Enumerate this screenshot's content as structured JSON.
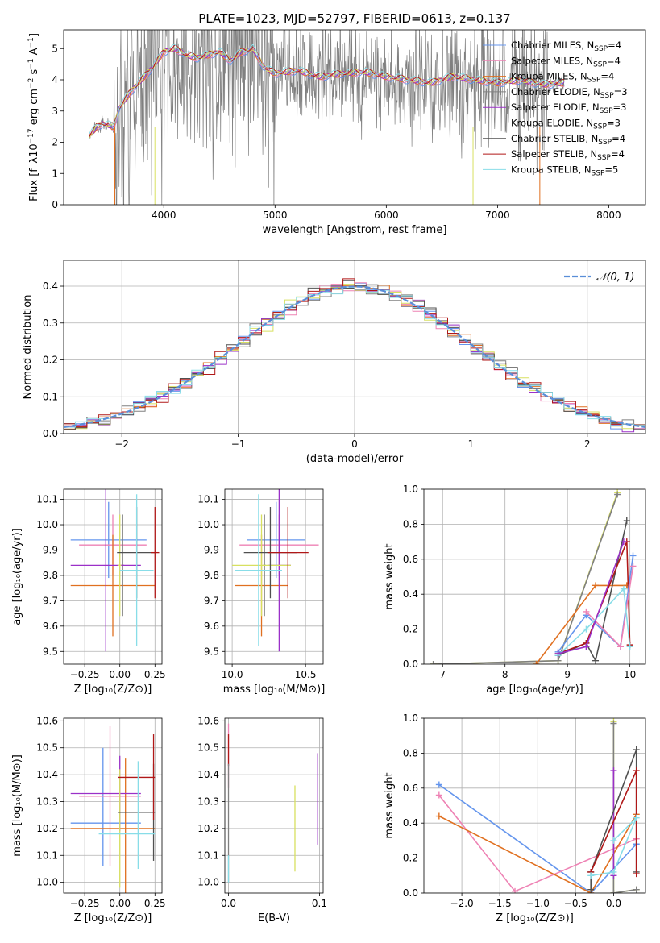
{
  "title": "PLATE=1023, MJD=52797, FIBERID=0613, z=0.137",
  "colors": {
    "Chabrier MILES": "#6495ed",
    "Salpeter MILES": "#ee82b4",
    "Kroupa MILES": "#e07020",
    "Chabrier ELODIE": "#808080",
    "Salpeter ELODIE": "#9b30c8",
    "Kroupa ELODIE": "#d8e060",
    "Chabrier STELIB": "#505050",
    "Salpeter STELIB": "#b01818",
    "Kroupa STELIB": "#88dde8",
    "gaussian": "#5a8ed8"
  },
  "chart_data": [
    {
      "id": "spectrum",
      "type": "line",
      "xlabel": "wavelength [Angstrom, rest frame]",
      "ylabel": "Flux [f_λ10^-17 erg cm^-2 s^-1 A^-1]",
      "xlim": [
        3100,
        8330
      ],
      "ylim": [
        0,
        5.6
      ],
      "xticks": [
        "4000",
        "5000",
        "6000",
        "7000",
        "8000"
      ],
      "yticks": [
        "0",
        "1",
        "2",
        "3",
        "4",
        "5"
      ],
      "legend_position": "right",
      "legend": [
        "Chabrier MILES, N_SSP=4",
        "Salpeter MILES, N_SSP=4",
        "Kroupa MILES, N_SSP=4",
        "Chabrier ELODIE, N_SSP=3",
        "Salpeter ELODIE, N_SSP=3",
        "Kroupa ELODIE, N_SSP=3",
        "Chabrier STELIB, N_SSP=4",
        "Salpeter STELIB, N_SSP=4",
        "Kroupa STELIB, N_SSP=5"
      ],
      "continuum": {
        "x": [
          3330,
          3400,
          3450,
          3550,
          3600,
          3700,
          3800,
          3900,
          4000,
          4100,
          4200,
          4300,
          4400,
          4500,
          4600,
          4700,
          4800,
          4900,
          5000,
          5200,
          5400,
          5600,
          5800,
          6000,
          6200,
          6400,
          6600,
          6800,
          7000,
          7200,
          7400,
          7600
        ],
        "y": [
          2.2,
          2.5,
          2.6,
          2.5,
          3.1,
          3.6,
          4.0,
          4.4,
          4.9,
          5.0,
          4.8,
          4.7,
          4.8,
          4.9,
          4.6,
          4.9,
          5.0,
          4.4,
          4.2,
          4.3,
          4.1,
          4.2,
          4.25,
          4.1,
          4.0,
          3.9,
          4.1,
          4.0,
          3.9,
          4.0,
          3.85,
          3.9
        ]
      }
    },
    {
      "id": "residuals",
      "type": "histogram",
      "xlabel": "(data-model)/error",
      "ylabel": "Normed distribution",
      "xlim": [
        -2.5,
        2.5
      ],
      "ylim": [
        0,
        0.47
      ],
      "xticks": [
        "−2",
        "−1",
        "0",
        "1",
        "2"
      ],
      "yticks": [
        "0.0",
        "0.1",
        "0.2",
        "0.3",
        "0.4"
      ],
      "legend_position": "top-right",
      "legend": [
        "𝒩(0, 1)"
      ],
      "bin_width": 0.1
    },
    {
      "id": "age-vs-Z",
      "type": "scatter",
      "xlabel": "Z [log10(Z/Z⊙)]",
      "ylabel": "age [log10(age/yr)]",
      "xlim": [
        -0.4,
        0.3
      ],
      "ylim": [
        9.45,
        10.14
      ],
      "xticks": [
        "−0.25",
        "0.00",
        "0.25"
      ],
      "yticks": [
        "9.5",
        "9.6",
        "9.7",
        "9.8",
        "9.9",
        "10.0",
        "10.1"
      ],
      "errorbars": [
        {
          "series": "Chabrier MILES",
          "x": -0.08,
          "xerr": 0.27,
          "y": 9.94,
          "yerr": 0.15
        },
        {
          "series": "Salpeter MILES",
          "x": -0.05,
          "xerr": 0.24,
          "y": 9.92,
          "yerr": 0.12
        },
        {
          "series": "Kroupa MILES",
          "x": -0.05,
          "xerr": 0.3,
          "y": 9.76,
          "yerr": 0.2
        },
        {
          "series": "Chabrier ELODIE",
          "x": 0.02,
          "xerr": 0.01,
          "y": 9.84,
          "yerr": 0.2
        },
        {
          "series": "Salpeter ELODIE",
          "x": -0.1,
          "xerr": 0.25,
          "y": 9.84,
          "yerr": 0.34
        },
        {
          "series": "Kroupa ELODIE",
          "x": 0.0,
          "xerr": 0.01,
          "y": 9.84,
          "yerr": 0.2
        },
        {
          "series": "Chabrier STELIB",
          "x": 0.12,
          "xerr": 0.14,
          "y": 9.89,
          "yerr": 0.18
        },
        {
          "series": "Salpeter STELIB",
          "x": 0.25,
          "xerr": 0.03,
          "y": 9.89,
          "yerr": 0.18
        },
        {
          "series": "Kroupa STELIB",
          "x": 0.12,
          "xerr": 0.12,
          "y": 9.82,
          "yerr": 0.3
        }
      ]
    },
    {
      "id": "age-vs-mass",
      "type": "scatter",
      "xlabel": "mass [log10(M/M⊙)]",
      "ylabel": "",
      "xlim": [
        9.95,
        10.62
      ],
      "ylim": [
        9.45,
        10.14
      ],
      "xticks": [
        "10.0",
        "10.5"
      ],
      "yticks": [
        "9.5",
        "9.6",
        "9.7",
        "9.8",
        "9.9",
        "10.0",
        "10.1"
      ],
      "errorbars": [
        {
          "series": "Chabrier MILES",
          "x": 10.3,
          "xerr": 0.2,
          "y": 9.94,
          "yerr": 0.15
        },
        {
          "series": "Salpeter MILES",
          "x": 10.32,
          "xerr": 0.27,
          "y": 9.92,
          "yerr": 0.12
        },
        {
          "series": "Kroupa MILES",
          "x": 10.2,
          "xerr": 0.18,
          "y": 9.76,
          "yerr": 0.2
        },
        {
          "series": "Chabrier ELODIE",
          "x": 10.22,
          "xerr": 0.01,
          "y": 9.84,
          "yerr": 0.2
        },
        {
          "series": "Salpeter ELODIE",
          "x": 10.32,
          "xerr": 0.08,
          "y": 9.84,
          "yerr": 0.34
        },
        {
          "series": "Kroupa ELODIE",
          "x": 10.2,
          "xerr": 0.2,
          "y": 9.84,
          "yerr": 0.2
        },
        {
          "series": "Chabrier STELIB",
          "x": 10.26,
          "xerr": 0.18,
          "y": 9.89,
          "yerr": 0.18
        },
        {
          "series": "Salpeter STELIB",
          "x": 10.38,
          "xerr": 0.14,
          "y": 9.89,
          "yerr": 0.18
        },
        {
          "series": "Kroupa STELIB",
          "x": 10.18,
          "xerr": 0.16,
          "y": 9.82,
          "yerr": 0.3
        }
      ]
    },
    {
      "id": "weight-vs-age",
      "type": "line",
      "xlabel": "age [log10(age/yr)]",
      "ylabel": "mass weight",
      "xlim": [
        6.7,
        10.25
      ],
      "ylim": [
        0,
        1
      ],
      "xticks": [
        "7",
        "8",
        "9",
        "10"
      ],
      "yticks": [
        "0.0",
        "0.2",
        "0.4",
        "0.6",
        "0.8",
        "1.0"
      ],
      "series": [
        {
          "series": "Kroupa ELODIE",
          "x": [
            6.85,
            8.85,
            9.8
          ],
          "y": [
            0.0,
            0.02,
            0.98
          ]
        },
        {
          "series": "Chabrier ELODIE",
          "x": [
            6.85,
            8.85,
            9.8
          ],
          "y": [
            0.0,
            0.02,
            0.97
          ]
        },
        {
          "series": "Kroupa MILES",
          "x": [
            8.5,
            9.45,
            9.95
          ],
          "y": [
            0.0,
            0.45,
            0.45
          ]
        },
        {
          "series": "Chabrier STELIB",
          "x": [
            8.85,
            9.3,
            9.45,
            9.95
          ],
          "y": [
            0.05,
            0.12,
            0.02,
            0.82
          ]
        },
        {
          "series": "Salpeter STELIB",
          "x": [
            8.85,
            9.3,
            9.95,
            10.0
          ],
          "y": [
            0.06,
            0.12,
            0.7,
            0.11
          ]
        },
        {
          "series": "Chabrier MILES",
          "x": [
            8.85,
            9.3,
            9.85,
            10.05
          ],
          "y": [
            0.07,
            0.28,
            0.1,
            0.62
          ]
        },
        {
          "series": "Salpeter MILES",
          "x": [
            9.3,
            9.85,
            10.05
          ],
          "y": [
            0.3,
            0.1,
            0.56
          ]
        },
        {
          "series": "Kroupa STELIB",
          "x": [
            8.85,
            9.3,
            9.9,
            10.0
          ],
          "y": [
            0.05,
            0.2,
            0.43,
            0.1
          ]
        },
        {
          "series": "Salpeter ELODIE",
          "x": [
            8.85,
            9.3,
            9.9
          ],
          "y": [
            0.06,
            0.1,
            0.7
          ]
        }
      ]
    },
    {
      "id": "mass-vs-Z",
      "type": "scatter",
      "xlabel": "Z [log10(Z/Z⊙)]",
      "ylabel": "mass [log10(M/M⊙)]",
      "xlim": [
        -0.4,
        0.3
      ],
      "ylim": [
        9.96,
        10.61
      ],
      "xticks": [
        "−0.25",
        "0.00",
        "0.25"
      ],
      "yticks": [
        "10.0",
        "10.1",
        "10.2",
        "10.3",
        "10.4",
        "10.5",
        "10.6"
      ],
      "errorbars": [
        {
          "series": "Chabrier MILES",
          "x": -0.1,
          "xerr": 0.25,
          "y": 10.22,
          "yerr": 0.0
        },
        {
          "series": "Chabrier MILES",
          "x": -0.12,
          "xerr": 0.0,
          "y": 10.28,
          "yerr": 0.22
        },
        {
          "series": "Salpeter MILES",
          "x": -0.07,
          "xerr": 0.22,
          "y": 10.32,
          "yerr": 0.0
        },
        {
          "series": "Salpeter MILES",
          "x": -0.07,
          "xerr": 0.0,
          "y": 10.32,
          "yerr": 0.26
        },
        {
          "series": "Kroupa MILES",
          "x": -0.05,
          "xerr": 0.3,
          "y": 10.2,
          "yerr": 0.0
        },
        {
          "series": "Kroupa MILES",
          "x": 0.04,
          "xerr": 0.0,
          "y": 10.2,
          "yerr": 0.26
        },
        {
          "series": "Salpeter ELODIE",
          "x": -0.1,
          "xerr": 0.25,
          "y": 10.33,
          "yerr": 0.0
        },
        {
          "series": "Salpeter ELODIE",
          "x": 0.0,
          "xerr": 0.0,
          "y": 10.33,
          "yerr": 0.14
        },
        {
          "series": "Kroupa ELODIE",
          "x": 0.0,
          "xerr": 0.0,
          "y": 10.2,
          "yerr": 0.22
        },
        {
          "series": "Chabrier STELIB",
          "x": 0.12,
          "xerr": 0.13,
          "y": 10.26,
          "yerr": 0.0
        },
        {
          "series": "Chabrier STELIB",
          "x": 0.24,
          "xerr": 0.0,
          "y": 10.26,
          "yerr": 0.18
        },
        {
          "series": "Salpeter STELIB",
          "x": 0.12,
          "xerr": 0.13,
          "y": 10.39,
          "yerr": 0.0
        },
        {
          "series": "Salpeter STELIB",
          "x": 0.24,
          "xerr": 0.0,
          "y": 10.39,
          "yerr": 0.16
        },
        {
          "series": "Kroupa STELIB",
          "x": 0.05,
          "xerr": 0.2,
          "y": 10.18,
          "yerr": 0.0
        },
        {
          "series": "Kroupa STELIB",
          "x": 0.13,
          "xerr": 0.0,
          "y": 10.25,
          "yerr": 0.2
        }
      ]
    },
    {
      "id": "mass-vs-ebv",
      "type": "scatter",
      "xlabel": "E(B-V)",
      "ylabel": "",
      "xlim": [
        -0.004,
        0.104
      ],
      "ylim": [
        9.96,
        10.61
      ],
      "xticks": [
        "0.0",
        "0.1"
      ],
      "yticks": [
        "10.0",
        "10.1",
        "10.2",
        "10.3",
        "10.4",
        "10.5",
        "10.6"
      ],
      "errorbars": [
        {
          "series": "Salpeter MILES",
          "x": 0.0,
          "y": 10.47,
          "yerr": 0.12
        },
        {
          "series": "Salpeter STELIB",
          "x": 0.0,
          "y": 10.49,
          "yerr": 0.06
        },
        {
          "series": "Chabrier ELODIE",
          "x": 0.0,
          "y": 10.22,
          "yerr": 0.22
        },
        {
          "series": "Kroupa ELODIE",
          "x": 0.073,
          "y": 10.2,
          "yerr": 0.16
        },
        {
          "series": "Salpeter ELODIE",
          "x": 0.098,
          "y": 10.31,
          "yerr": 0.17
        },
        {
          "series": "Kroupa STELIB",
          "x": 0.0,
          "y": 10.05,
          "yerr": 0.05
        }
      ]
    },
    {
      "id": "weight-vs-Z",
      "type": "line",
      "xlabel": "Z [log10(Z/Z⊙)]",
      "ylabel": "mass weight",
      "xlim": [
        -2.5,
        0.42
      ],
      "ylim": [
        0,
        1
      ],
      "xticks": [
        "−2.0",
        "−1.5",
        "−1.0",
        "−0.5",
        "0.0"
      ],
      "yticks": [
        "0.0",
        "0.2",
        "0.4",
        "0.6",
        "0.8",
        "1.0"
      ],
      "series": [
        {
          "series": "Chabrier MILES",
          "x": [
            -2.3,
            -0.3,
            0.3
          ],
          "y": [
            0.62,
            0.0,
            0.28
          ]
        },
        {
          "series": "Salpeter MILES",
          "x": [
            -2.3,
            -1.3,
            0.3
          ],
          "y": [
            0.56,
            0.01,
            0.31
          ]
        },
        {
          "series": "Kroupa MILES",
          "x": [
            -2.3,
            -0.3,
            0.3
          ],
          "y": [
            0.44,
            0.0,
            0.45
          ]
        },
        {
          "series": "Kroupa ELODIE",
          "x": [
            0.0,
            0.0,
            0.3
          ],
          "y": [
            0.98,
            0.0,
            0.02
          ]
        },
        {
          "series": "Chabrier ELODIE",
          "x": [
            0.0,
            0.0,
            0.3
          ],
          "y": [
            0.97,
            0.0,
            0.02
          ]
        },
        {
          "series": "Salpeter ELODIE",
          "x": [
            0.0,
            0.0
          ],
          "y": [
            0.7,
            0.1
          ]
        },
        {
          "series": "Chabrier STELIB",
          "x": [
            -0.3,
            -0.3,
            0.3,
            0.3
          ],
          "y": [
            0.02,
            0.12,
            0.82,
            0.12
          ]
        },
        {
          "series": "Salpeter STELIB",
          "x": [
            -0.3,
            0.3,
            0.3
          ],
          "y": [
            0.12,
            0.7,
            0.11
          ]
        },
        {
          "series": "Kroupa STELIB",
          "x": [
            -0.3,
            0.0,
            0.3,
            0.0
          ],
          "y": [
            0.1,
            0.12,
            0.43,
            0.3
          ]
        }
      ]
    }
  ]
}
